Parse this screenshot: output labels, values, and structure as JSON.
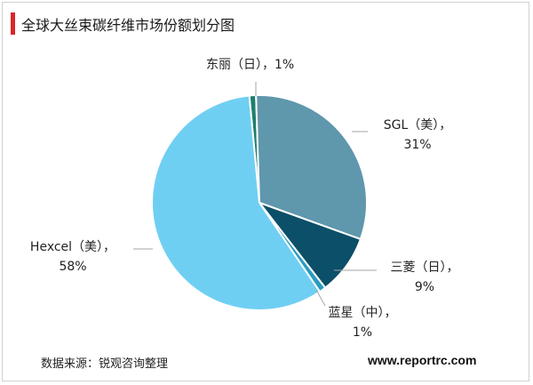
{
  "chart_data": {
    "type": "pie",
    "title": "全球大丝束碳纤维市场份额划分图",
    "slices": [
      {
        "label": "东丽（日）",
        "value": 1,
        "display": "东丽（日），1%",
        "color": "#1f7f6e"
      },
      {
        "label": "SGL（美）",
        "value": 31,
        "display_a": "SGL（美），",
        "display_b": "31%",
        "color": "#5f97ad"
      },
      {
        "label": "三菱（日）",
        "value": 9,
        "display_a": "三菱（日），",
        "display_b": "9%",
        "color": "#0b4f68"
      },
      {
        "label": "蓝星（中）",
        "value": 1,
        "display_a": "蓝星（中），",
        "display_b": "1%",
        "color": "#2a9bc0"
      },
      {
        "label": "Hexcel（美）",
        "value": 58,
        "display_a": "Hexcel（美），",
        "display_b": "58%",
        "color": "#6fcff3"
      }
    ]
  },
  "footer": {
    "source": "数据来源：锐观咨询整理",
    "website": "www.reportrc.com"
  }
}
